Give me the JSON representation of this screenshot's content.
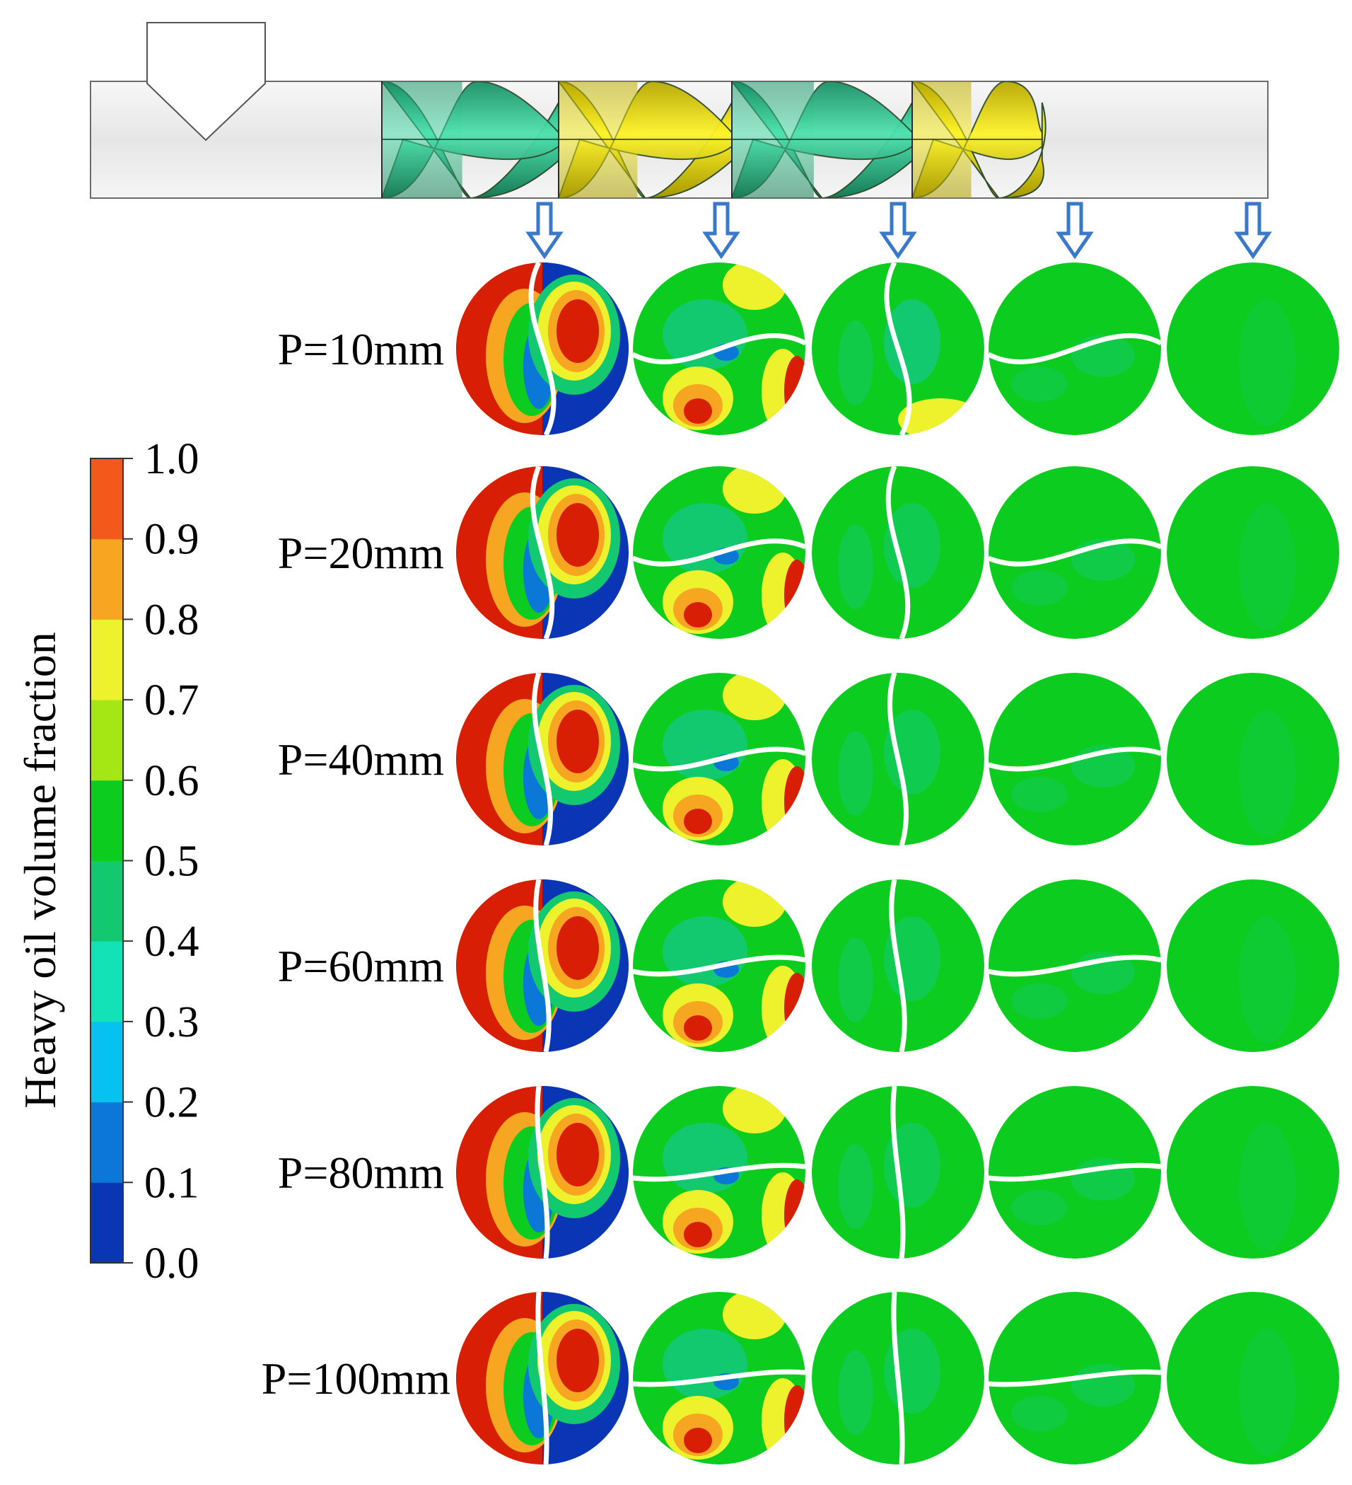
{
  "colorbar": {
    "title": "Heavy oil volume fraction",
    "ticks": [
      "0.0",
      "0.1",
      "0.2",
      "0.3",
      "0.4",
      "0.5",
      "0.6",
      "0.7",
      "0.8",
      "0.9",
      "1.0"
    ],
    "colors": [
      "#0a35b5",
      "#0b78d8",
      "#05c2f0",
      "#12e2b6",
      "#12c970",
      "#0ccd1f",
      "#a5e616",
      "#eef22d",
      "#f7a622",
      "#f2591a"
    ]
  },
  "rows": [
    {
      "label": "P=10mm"
    },
    {
      "label": "P=20mm"
    },
    {
      "label": "P=40mm"
    },
    {
      "label": "P=60mm"
    },
    {
      "label": "P=80mm"
    },
    {
      "label": "P=100mm"
    }
  ],
  "columns": 5,
  "mixer_colors": {
    "green": "#36d6a0",
    "yellow": "#f2ea10",
    "pipe": "#eeeeee"
  },
  "arrow_color": "#3a78c9"
}
